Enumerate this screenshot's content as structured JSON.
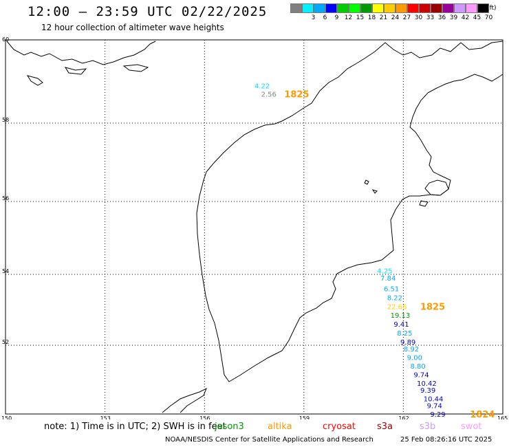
{
  "header": {
    "title": "12:00 – 23:59 UTC 02/22/2025",
    "subtitle": "12 hour collection of altimeter wave heights"
  },
  "legend": {
    "unit": "(ft)",
    "items": [
      {
        "label": "",
        "color": "#808080"
      },
      {
        "label": "3",
        "color": "#00f0ff"
      },
      {
        "label": "6",
        "color": "#00a8ff"
      },
      {
        "label": "9",
        "color": "#0000ff"
      },
      {
        "label": "12",
        "color": "#00cc00"
      },
      {
        "label": "15",
        "color": "#00ff00"
      },
      {
        "label": "18",
        "color": "#009900"
      },
      {
        "label": "21",
        "color": "#ffff00"
      },
      {
        "label": "24",
        "color": "#ffcc00"
      },
      {
        "label": "27",
        "color": "#ff9900"
      },
      {
        "label": "30",
        "color": "#ff0000"
      },
      {
        "label": "33",
        "color": "#cc0000"
      },
      {
        "label": "36",
        "color": "#990000"
      },
      {
        "label": "39",
        "color": "#990099"
      },
      {
        "label": "42",
        "color": "#cc99ff"
      },
      {
        "label": "45",
        "color": "#ff99ff"
      },
      {
        "label": "70",
        "color": "#000000"
      }
    ]
  },
  "axes": {
    "lat_labels": [
      "60",
      "58",
      "56",
      "54",
      "52",
      "50"
    ],
    "lon_labels": [
      "150",
      "153",
      "156",
      "159",
      "162",
      "165"
    ]
  },
  "observations": [
    {
      "value": "4.22",
      "color": "#00e0ff",
      "lon": 157.8,
      "lat": 58.9
    },
    {
      "value": "2.56",
      "color": "#808080",
      "lon": 158.0,
      "lat": 58.7
    },
    {
      "value": "4.25",
      "color": "#00e0ff",
      "lon": 161.5,
      "lat": 54.1
    },
    {
      "value": "7.84",
      "color": "#00a8ff",
      "lon": 161.6,
      "lat": 53.9
    },
    {
      "value": "6.51",
      "color": "#00a8ff",
      "lon": 161.7,
      "lat": 53.6
    },
    {
      "value": "8.22",
      "color": "#00a8ff",
      "lon": 161.8,
      "lat": 53.35
    },
    {
      "value": "22.66",
      "color": "#ffcc00",
      "lon": 161.8,
      "lat": 53.1
    },
    {
      "value": "19.13",
      "color": "#009900",
      "lon": 161.9,
      "lat": 52.85
    },
    {
      "value": "9.41",
      "color": "#0000cc",
      "lon": 162.0,
      "lat": 52.6
    },
    {
      "value": "8.25",
      "color": "#00a8ff",
      "lon": 162.1,
      "lat": 52.35
    },
    {
      "value": "9.89",
      "color": "#0000cc",
      "lon": 162.2,
      "lat": 52.1
    },
    {
      "value": "8.92",
      "color": "#00a8ff",
      "lon": 162.3,
      "lat": 51.9
    },
    {
      "value": "9.00",
      "color": "#00a8ff",
      "lon": 162.4,
      "lat": 51.65
    },
    {
      "value": "8.80",
      "color": "#00a8ff",
      "lon": 162.5,
      "lat": 51.4
    },
    {
      "value": "9.74",
      "color": "#0000cc",
      "lon": 162.6,
      "lat": 51.15
    },
    {
      "value": "10.42",
      "color": "#0000cc",
      "lon": 162.7,
      "lat": 50.9
    },
    {
      "value": "9.39",
      "color": "#0000cc",
      "lon": 162.8,
      "lat": 50.7
    },
    {
      "value": "10.44",
      "color": "#0000cc",
      "lon": 162.9,
      "lat": 50.45
    },
    {
      "value": "9.74",
      "color": "#0000cc",
      "lon": 163.0,
      "lat": 50.25
    },
    {
      "value": "9.29",
      "color": "#0000cc",
      "lon": 163.1,
      "lat": 50.0
    }
  ],
  "time_marks": [
    {
      "text": "1825",
      "color": "#ff9900",
      "lon": 158.7,
      "lat": 58.7
    },
    {
      "text": "1825",
      "color": "#ff9900",
      "lon": 162.8,
      "lat": 53.1
    },
    {
      "text": "1824",
      "color": "#ff9900",
      "lon": 164.3,
      "lat": 50.0
    }
  ],
  "footer": {
    "note": "note: 1) Time is in UTC; 2) SWH is in feet",
    "satellites": [
      {
        "name": "jason3",
        "color": "#009900"
      },
      {
        "name": "altika",
        "color": "#ff9900"
      },
      {
        "name": "cryosat",
        "color": "#ff0000"
      },
      {
        "name": "s3a",
        "color": "#990000"
      },
      {
        "name": "s3b",
        "color": "#cc99ff"
      },
      {
        "name": "swot",
        "color": "#ff99ff"
      }
    ],
    "credit": "NOAA/NESDIS Center for Satellite Applications and Research",
    "timestamp": "25 Feb 08:26:16 UTC 2025"
  }
}
